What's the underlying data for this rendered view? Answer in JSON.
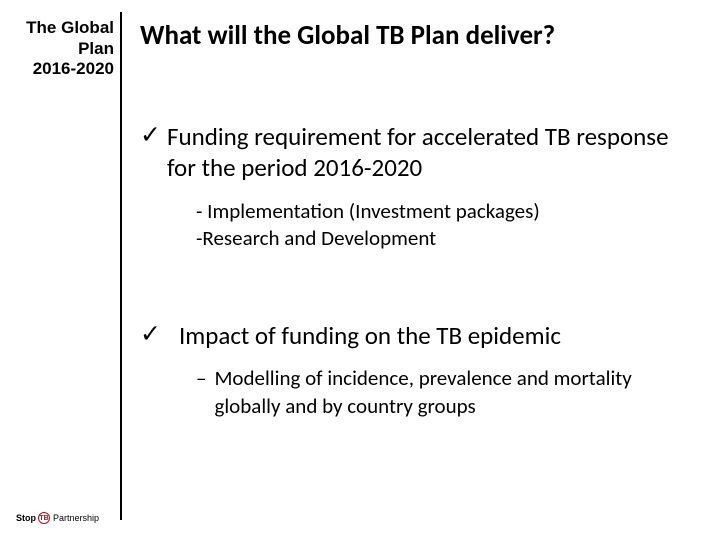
{
  "sidebar": {
    "line1": "The Global",
    "line2": "Plan",
    "line3": "2016-2020"
  },
  "heading": "What will the Global TB Plan deliver?",
  "bullet1": {
    "check": "✓",
    "text": "Funding requirement for accelerated TB response for the period 2016-2020",
    "sub1": "- Implementation (Investment packages)",
    "sub2": "-Research and Development"
  },
  "bullet2": {
    "check": "✓",
    "text": "Impact of funding on the TB epidemic",
    "dash": "–",
    "sub1": "Modelling of incidence, prevalence and mortality globally and by country groups"
  },
  "logo": {
    "stop": "Stop",
    "tb": "TB",
    "partnership": "Partnership"
  },
  "colors": {
    "text": "#000000",
    "accent": "#b5121b",
    "background": "#ffffff"
  }
}
